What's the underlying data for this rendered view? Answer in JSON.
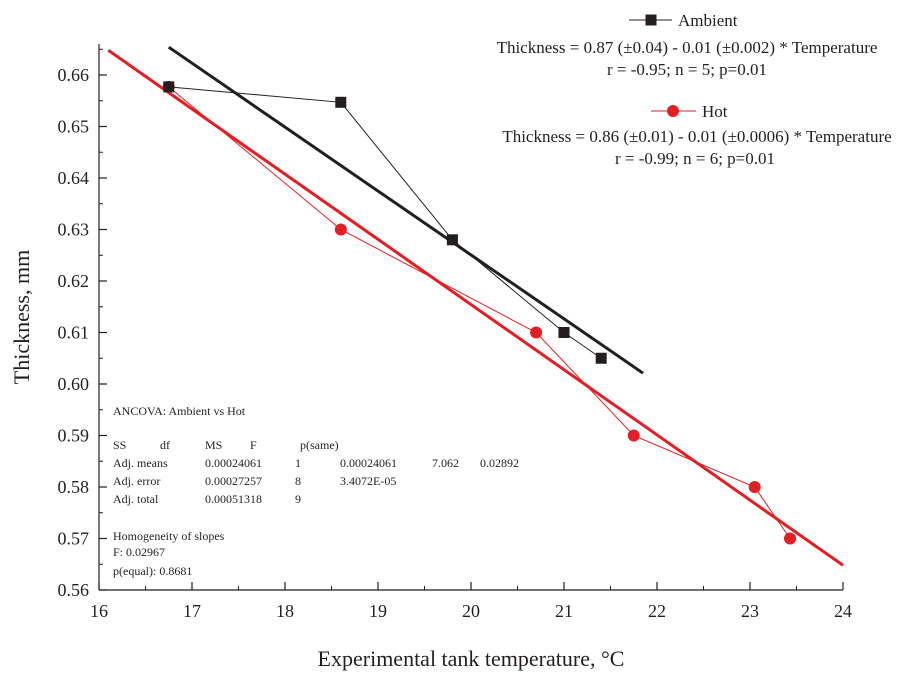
{
  "chart_data": {
    "type": "line",
    "xlabel": "Experimental tank temperature, °C",
    "ylabel": "Thickness, mm",
    "xlim": [
      16,
      24
    ],
    "ylim": [
      0.56,
      0.665
    ],
    "x_ticks": [
      16,
      17,
      18,
      19,
      20,
      21,
      22,
      23,
      24
    ],
    "x_tick_labels": [
      "16",
      "17",
      "18",
      "19",
      "20",
      "21",
      "22",
      "23",
      "24"
    ],
    "y_ticks": [
      0.56,
      0.57,
      0.58,
      0.59,
      0.6,
      0.61,
      0.62,
      0.63,
      0.64,
      0.65,
      0.66
    ],
    "y_tick_labels": [
      "0.56",
      "0.57",
      "0.58",
      "0.59",
      "0.60",
      "0.61",
      "0.62",
      "0.63",
      "0.64",
      "0.65",
      "0.66"
    ],
    "grid": false,
    "legend_position": "top-right",
    "series": [
      {
        "name": "Ambient",
        "color": "#231f20",
        "marker": "square",
        "x": [
          16.75,
          18.6,
          19.8,
          21.0,
          21.4
        ],
        "y": [
          0.6577,
          0.6547,
          0.628,
          0.61,
          0.605
        ],
        "fit": {
          "x": [
            16.75,
            21.85
          ],
          "y": [
            0.6654,
            0.6021
          ]
        },
        "equation": "Thickness = 0.87 (±0.04) - 0.01 (±0.002) * Temperature",
        "stats": "r = -0.95; n = 5; p=0.01"
      },
      {
        "name": "Hot",
        "color": "#e31e24",
        "marker": "circle",
        "x": [
          16.75,
          18.6,
          20.7,
          21.75,
          23.05,
          23.43
        ],
        "y": [
          0.6577,
          0.63,
          0.61,
          0.59,
          0.58,
          0.57
        ],
        "fit": {
          "x": [
            16.1,
            24.0
          ],
          "y": [
            0.6648,
            0.5648
          ]
        },
        "equation": "Thickness = 0.86 (±0.01) - 0.01 (±0.0006) * Temperature",
        "stats": "r = -0.99; n = 6; p=0.01"
      }
    ],
    "annotation": {
      "title": "ANCOVA: Ambient vs Hot",
      "header": [
        "SS",
        "df",
        "MS",
        "F",
        "p(same)"
      ],
      "rows": [
        [
          "Adj. means",
          "0.00024061",
          "1",
          "0.00024061",
          "7.062",
          "0.02892"
        ],
        [
          "Adj. error",
          "0.00027257",
          "8",
          "3.4072E-05"
        ],
        [
          "Adj. total",
          "0.00051318",
          "9"
        ]
      ],
      "homogeneity_title": "Homogeneity of slopes",
      "homogeneity_f": "F: 0.02967",
      "homogeneity_p": "p(equal): 0.8681"
    }
  }
}
